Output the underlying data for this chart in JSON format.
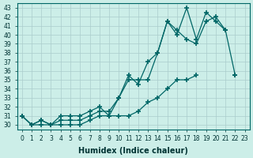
{
  "xlabel": "Humidex (Indice chaleur)",
  "ylabel": "",
  "background_color": "#cceee8",
  "grid_color": "#aacccc",
  "line_color": "#006666",
  "xlim": [
    -0.5,
    23.5
  ],
  "ylim": [
    29.5,
    43.5
  ],
  "xticks": [
    0,
    1,
    2,
    3,
    4,
    5,
    6,
    7,
    8,
    9,
    10,
    11,
    12,
    13,
    14,
    15,
    16,
    17,
    18,
    19,
    20,
    21,
    22,
    23
  ],
  "yticks": [
    30,
    31,
    32,
    33,
    34,
    35,
    36,
    37,
    38,
    39,
    40,
    41,
    42,
    43
  ],
  "line1_x": [
    0,
    1,
    2,
    3,
    4,
    5,
    6,
    7,
    8,
    9,
    10,
    11,
    12,
    13,
    14,
    15,
    16,
    17,
    18,
    19,
    20,
    21,
    22,
    23
  ],
  "line1_y": [
    31.0,
    30.0,
    30.5,
    30.0,
    31.0,
    31.0,
    31.0,
    31.5,
    32.0,
    31.0,
    33.0,
    35.0,
    35.0,
    35.0,
    38.0,
    41.5,
    40.5,
    39.5,
    39.0,
    41.5,
    42.0,
    40.5,
    null,
    null
  ],
  "line2_x": [
    0,
    1,
    2,
    3,
    4,
    5,
    6,
    7,
    8,
    9,
    10,
    11,
    12,
    13,
    14,
    15,
    16,
    17,
    18,
    19,
    20,
    21,
    22,
    23
  ],
  "line2_y": [
    31.0,
    30.0,
    30.5,
    30.0,
    30.5,
    30.5,
    30.5,
    31.0,
    31.5,
    31.5,
    33.0,
    35.5,
    34.5,
    37.0,
    38.0,
    41.5,
    40.0,
    43.0,
    39.5,
    42.5,
    41.5,
    40.5,
    35.5,
    null
  ],
  "line3_x": [
    0,
    1,
    2,
    3,
    4,
    5,
    6,
    7,
    8,
    9,
    10,
    11,
    12,
    13,
    14,
    15,
    16,
    17,
    18,
    19,
    20,
    21,
    22,
    23
  ],
  "line3_y": [
    31.0,
    30.0,
    30.0,
    30.0,
    30.0,
    30.0,
    30.0,
    30.5,
    31.0,
    31.0,
    31.0,
    31.0,
    31.5,
    32.5,
    33.0,
    34.0,
    35.0,
    35.0,
    35.5,
    null,
    null,
    null,
    35.5,
    null
  ]
}
